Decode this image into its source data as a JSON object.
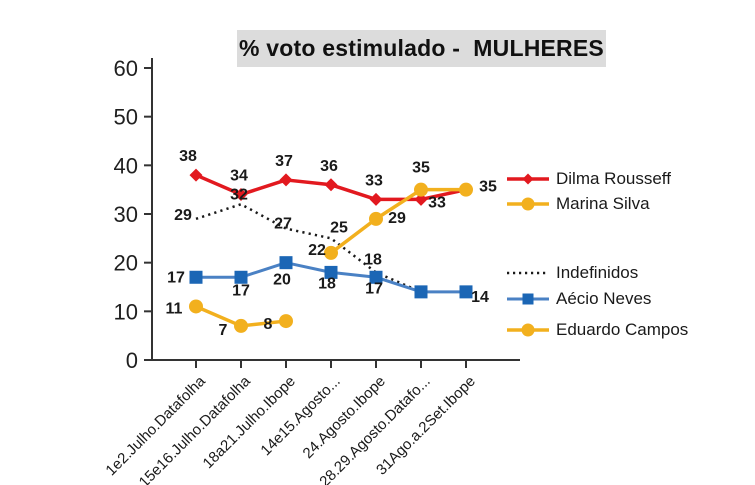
{
  "title": "% voto estimulado -  MULHERES",
  "legend": [
    {
      "label": "Dilma Rousseff"
    },
    {
      "label": "Marina Silva"
    },
    {
      "label": "Indefinidos"
    },
    {
      "label": "Aécio Neves"
    },
    {
      "label": "Eduardo Campos"
    }
  ],
  "chart_data": {
    "type": "line",
    "title": "% voto estimulado - MULHERES",
    "xlabel": "",
    "ylabel": "",
    "ylim": [
      0,
      60
    ],
    "yticks": [
      0,
      10,
      20,
      30,
      40,
      50,
      60
    ],
    "grid": false,
    "legend_position": "right",
    "categories": [
      "1e2.Julho.Datafolha",
      "15e16.Julho.Datafolha",
      "18a21.Julho.Ibope",
      "14e15.Agosto...",
      "24.Agosto.Ibope",
      "28.29.Agosto.Datafo...",
      "31Ago.a.2Set.Ibope"
    ],
    "series": [
      {
        "name": "Dilma Rousseff",
        "color": "#e2191f",
        "marker": "diamond",
        "line": "solid",
        "width": 3.5,
        "values": [
          38,
          34,
          37,
          36,
          33,
          33,
          35
        ],
        "point_labels": [
          {
            "i": 0,
            "dx": -8,
            "dy": -14
          },
          {
            "i": 1,
            "dx": -2,
            "dy": -14
          },
          {
            "i": 2,
            "dx": -2,
            "dy": -14
          },
          {
            "i": 3,
            "dx": -2,
            "dy": -14
          },
          {
            "i": 4,
            "dx": -2,
            "dy": -14
          },
          {
            "i": 5,
            "dx": 16,
            "dy": 8
          }
        ]
      },
      {
        "name": "Marina Silva",
        "color": "#f2b01e",
        "marker": "circle",
        "line": "solid",
        "width": 3.5,
        "values": [
          null,
          null,
          null,
          22,
          29,
          35,
          35
        ],
        "point_labels": [
          {
            "i": 3,
            "dx": -14,
            "dy": 2
          },
          {
            "i": 4,
            "dx": 21,
            "dy": 4
          },
          {
            "i": 5,
            "dx": 0,
            "dy": -17
          },
          {
            "i": 6,
            "dx": 22,
            "dy": 2
          }
        ]
      },
      {
        "name": "Indefinidos",
        "color": "#1a1a1a",
        "marker": "none",
        "line": "dotted",
        "width": 2.5,
        "values": [
          29,
          32,
          27,
          25,
          18,
          14,
          null
        ],
        "point_labels": [
          {
            "i": 0,
            "dx": -13,
            "dy": 1
          },
          {
            "i": 1,
            "dx": -2,
            "dy": -5
          },
          {
            "i": 2,
            "dx": -3,
            "dy": 0
          },
          {
            "i": 3,
            "dx": 8,
            "dy": -6
          },
          {
            "i": 4,
            "dx": -3,
            "dy": -8
          }
        ]
      },
      {
        "name": "Aécio Neves",
        "color": "#4a81c4",
        "marker_color": "#1b66b5",
        "marker": "square",
        "line": "solid",
        "width": 3,
        "values": [
          17,
          17,
          20,
          18,
          17,
          14,
          14
        ],
        "point_labels": [
          {
            "i": 0,
            "dx": -20,
            "dy": 5
          },
          {
            "i": 1,
            "dx": 0,
            "dy": 18
          },
          {
            "i": 2,
            "dx": -4,
            "dy": 22
          },
          {
            "i": 3,
            "dx": -4,
            "dy": 16
          },
          {
            "i": 4,
            "dx": -2,
            "dy": 16
          },
          {
            "i": 6,
            "dx": 14,
            "dy": 10
          }
        ]
      },
      {
        "name": "Eduardo Campos",
        "color": "#f2b01e",
        "marker": "circle",
        "line": "solid",
        "width": 3.5,
        "values": [
          11,
          7,
          8,
          null,
          null,
          null,
          null
        ],
        "point_labels": [
          {
            "i": 0,
            "dx": -22,
            "dy": 7
          },
          {
            "i": 1,
            "dx": -18,
            "dy": 9
          },
          {
            "i": 2,
            "dx": -18,
            "dy": 8
          }
        ]
      }
    ]
  }
}
